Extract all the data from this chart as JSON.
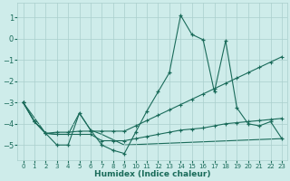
{
  "xlabel": "Humidex (Indice chaleur)",
  "bg_color": "#ceecea",
  "grid_color": "#aacfcc",
  "line_color": "#1a6b5a",
  "xlim": [
    -0.5,
    23.5
  ],
  "ylim": [
    -5.7,
    1.7
  ],
  "yticks": [
    1,
    0,
    -1,
    -2,
    -3,
    -4,
    -5
  ],
  "xticks": [
    0,
    1,
    2,
    3,
    4,
    5,
    6,
    7,
    8,
    9,
    10,
    11,
    12,
    13,
    14,
    15,
    16,
    17,
    18,
    19,
    20,
    21,
    22,
    23
  ],
  "line1_x": [
    0,
    1,
    2,
    3,
    4,
    5,
    6,
    7,
    8,
    9,
    10,
    11,
    12,
    13,
    14,
    15,
    16,
    17,
    18,
    19,
    20,
    21,
    22,
    23
  ],
  "line1_y": [
    -3.0,
    -3.9,
    -4.45,
    -5.0,
    -5.0,
    -3.5,
    -4.3,
    -5.0,
    -5.25,
    -5.4,
    -4.4,
    -3.4,
    -2.5,
    -1.6,
    1.1,
    0.2,
    -0.05,
    -2.5,
    -0.1,
    -3.25,
    -4.0,
    -4.1,
    -3.9,
    -4.7
  ],
  "line2_x": [
    0,
    1,
    2,
    3,
    4,
    5,
    6,
    7,
    8,
    9,
    10,
    11,
    12,
    13,
    14,
    15,
    16,
    17,
    18,
    19,
    20,
    21,
    22,
    23
  ],
  "line2_y": [
    -3.0,
    -3.9,
    -4.45,
    -4.4,
    -4.4,
    -4.35,
    -4.35,
    -4.35,
    -4.35,
    -4.35,
    -4.1,
    -3.85,
    -3.6,
    -3.35,
    -3.1,
    -2.85,
    -2.6,
    -2.35,
    -2.1,
    -1.85,
    -1.6,
    -1.35,
    -1.1,
    -0.85
  ],
  "line3_x": [
    0,
    1,
    2,
    3,
    4,
    5,
    6,
    7,
    8,
    9,
    10,
    11,
    12,
    13,
    14,
    15,
    16,
    17,
    18,
    19,
    20,
    21,
    22,
    23
  ],
  "line3_y": [
    -3.0,
    -3.9,
    -4.45,
    -4.5,
    -4.5,
    -4.5,
    -4.5,
    -4.8,
    -4.8,
    -4.8,
    -4.7,
    -4.6,
    -4.5,
    -4.4,
    -4.3,
    -4.25,
    -4.2,
    -4.1,
    -4.0,
    -3.95,
    -3.9,
    -3.85,
    -3.8,
    -3.75
  ],
  "line4_x": [
    0,
    2,
    3,
    4,
    5,
    6,
    7,
    9,
    23
  ],
  "line4_y": [
    -3.0,
    -4.45,
    -4.5,
    -4.5,
    -3.5,
    -4.3,
    -4.5,
    -5.0,
    -4.7
  ]
}
